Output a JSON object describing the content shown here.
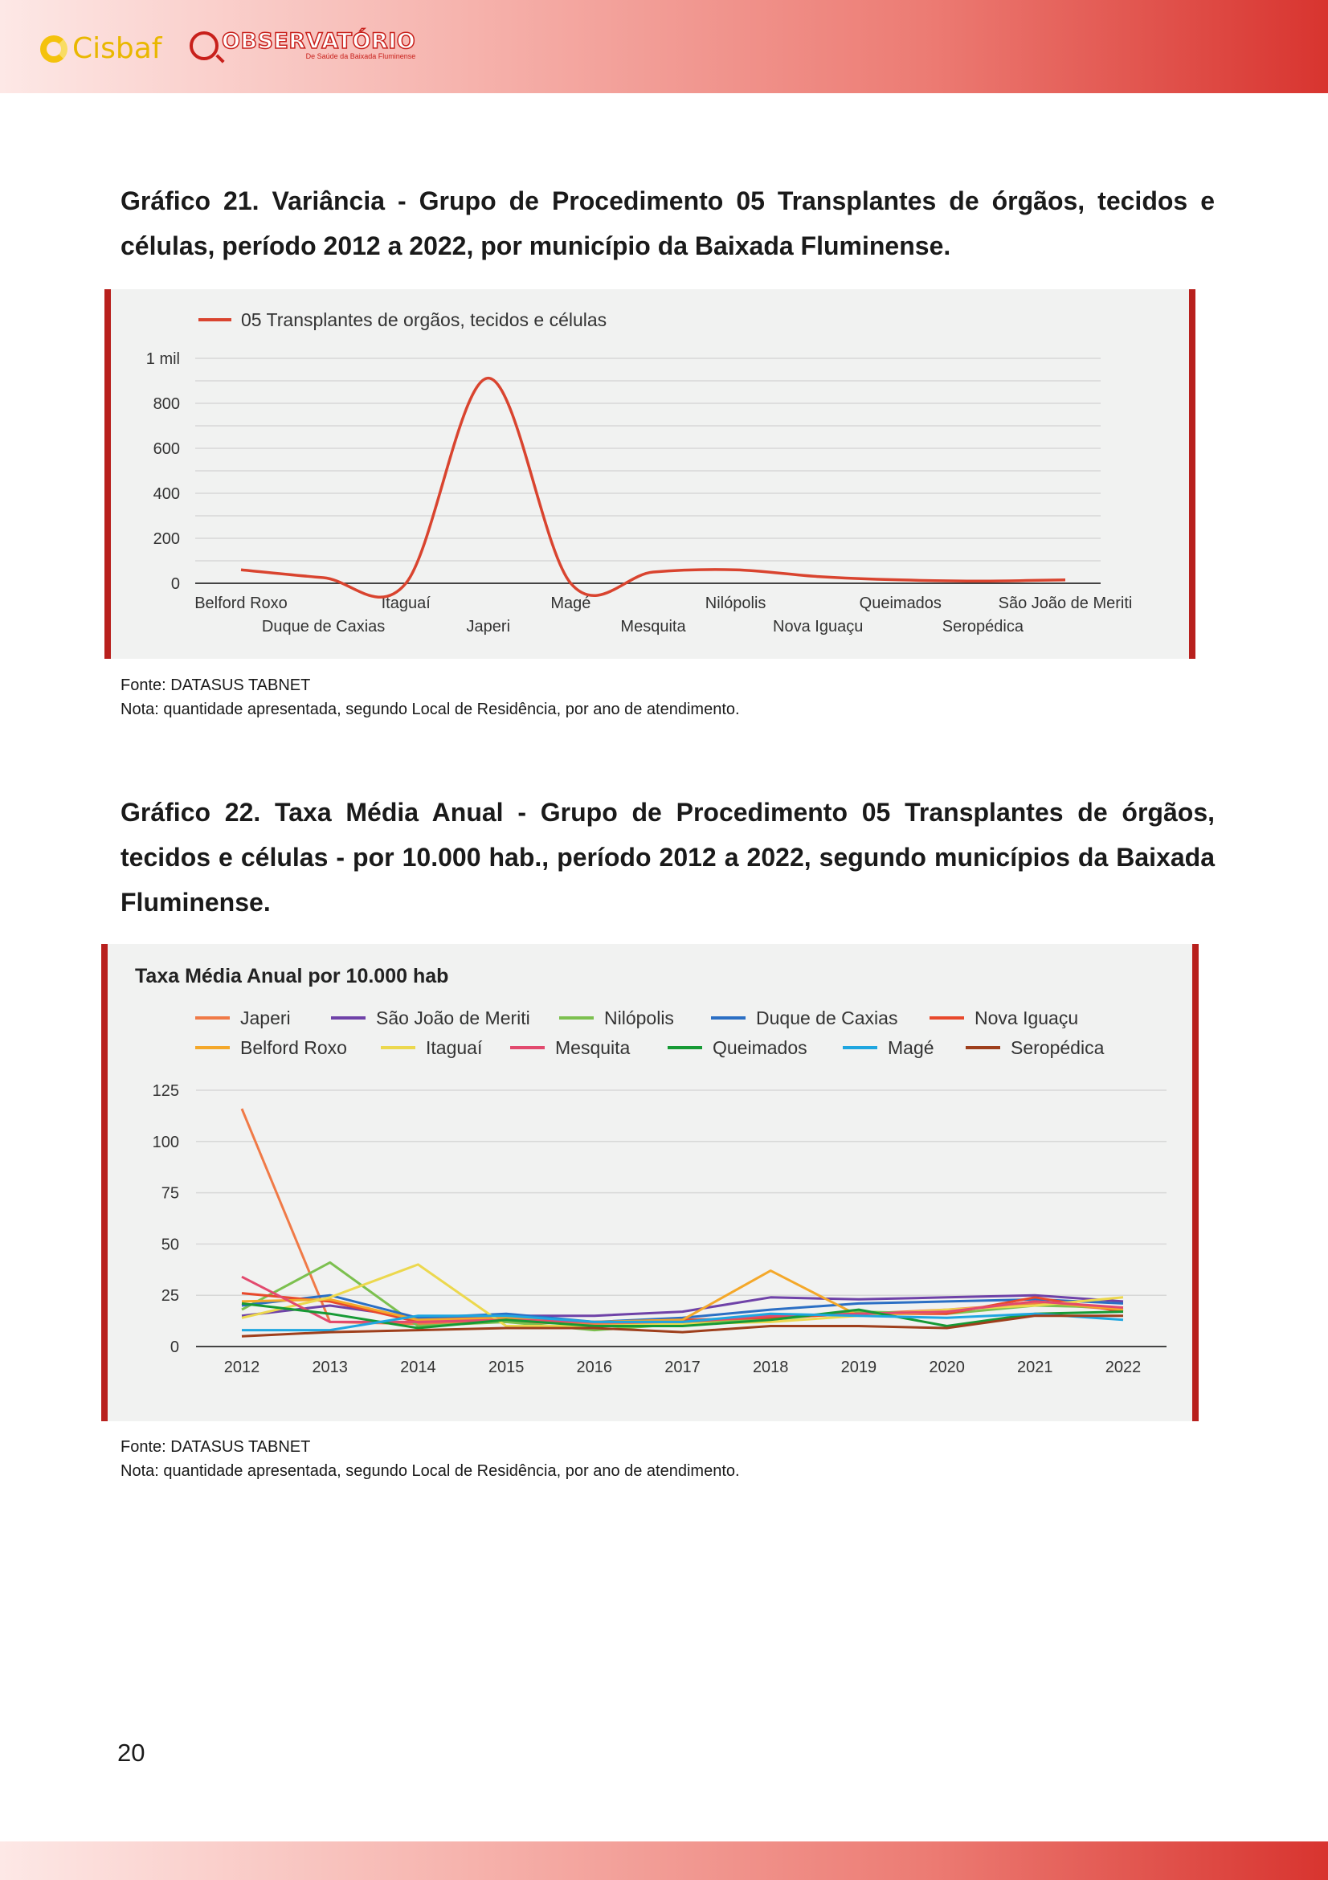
{
  "header": {
    "logo1": "Cisbaf",
    "logo2_name": "OBSERVATÓRIO",
    "logo2_sub": "De Saúde da Baixada Fluminense"
  },
  "chart21": {
    "caption": "Gráfico 21. Variância - Grupo de Procedimento 05 Transplantes de órgãos, tecidos e células, período 2012 a 2022, por município da Baixada Fluminense.",
    "source": "Fonte: DATASUS TABNET",
    "note": "Nota: quantidade apresentada, segundo Local de Residência, por ano de atendimento."
  },
  "chart22": {
    "caption": "Gráfico 22. Taxa Média Anual - Grupo de Procedimento 05 Transplantes de órgãos, tecidos e células - por 10.000 hab., período 2012 a 2022, segundo municípios da Baixada Fluminense.",
    "source": "Fonte: DATASUS TABNET",
    "note": "Nota: quantidade apresentada, segundo Local de Residência, por ano de atendimento."
  },
  "page_number": "20",
  "chart_data": [
    {
      "type": "line",
      "title": "",
      "xlabel": "",
      "ylabel": "",
      "ylim": [
        0,
        1000
      ],
      "yticks": [
        0,
        200,
        400,
        600,
        800,
        1000
      ],
      "ytick_labels": [
        "0",
        "200",
        "400",
        "600",
        "800",
        "1 mil"
      ],
      "categories": [
        "Belford Roxo",
        "Duque de Caxias",
        "Itaguaí",
        "Japeri",
        "Magé",
        "Mesquita",
        "Nilópolis",
        "Nova Iguaçu",
        "Queimados",
        "Seropédica",
        "São João de Meriti"
      ],
      "series": [
        {
          "name": "05 Transplantes de orgãos, tecidos e células",
          "color": "#d9442f",
          "values": [
            60,
            25,
            0,
            912,
            0,
            50,
            60,
            30,
            15,
            10,
            15
          ]
        }
      ],
      "grid": true,
      "legend": "top-left"
    },
    {
      "type": "line",
      "title": "Taxa Média Anual por 10.000 hab",
      "xlabel": "",
      "ylabel": "",
      "ylim": [
        0,
        125
      ],
      "yticks": [
        0,
        25,
        50,
        75,
        100,
        125
      ],
      "categories": [
        "2012",
        "2013",
        "2014",
        "2015",
        "2016",
        "2017",
        "2018",
        "2019",
        "2020",
        "2021",
        "2022"
      ],
      "series": [
        {
          "name": "Japeri",
          "color": "#f07a47",
          "values": [
            116,
            12,
            11,
            12,
            11,
            12,
            14,
            16,
            18,
            21,
            18
          ]
        },
        {
          "name": "São João de Meriti",
          "color": "#6f42a8",
          "values": [
            15,
            20,
            14,
            15,
            15,
            17,
            24,
            23,
            24,
            25,
            22
          ]
        },
        {
          "name": "Nilópolis",
          "color": "#7cc04f",
          "values": [
            18,
            41,
            10,
            12,
            8,
            11,
            13,
            17,
            16,
            20,
            19
          ]
        },
        {
          "name": "Duque de Caxias",
          "color": "#2b6fc4",
          "values": [
            20,
            25,
            14,
            16,
            12,
            14,
            18,
            21,
            22,
            23,
            21
          ]
        },
        {
          "name": "Nova Iguaçu",
          "color": "#e8492c",
          "values": [
            26,
            22,
            12,
            13,
            12,
            13,
            14,
            16,
            16,
            24,
            17
          ]
        },
        {
          "name": "Belford Roxo",
          "color": "#f4a82a",
          "values": [
            22,
            23,
            13,
            14,
            12,
            13,
            37,
            15,
            17,
            22,
            18
          ]
        },
        {
          "name": "Itaguaí",
          "color": "#ecd84e",
          "values": [
            14,
            24,
            40,
            10,
            10,
            11,
            12,
            15,
            18,
            20,
            24
          ]
        },
        {
          "name": "Mesquita",
          "color": "#e24a6e",
          "values": [
            34,
            12,
            12,
            13,
            12,
            12,
            15,
            16,
            17,
            22,
            19
          ]
        },
        {
          "name": "Queimados",
          "color": "#169a35",
          "values": [
            21,
            16,
            9,
            13,
            10,
            10,
            13,
            18,
            10,
            16,
            17
          ]
        },
        {
          "name": "Magé",
          "color": "#1fa6e0",
          "values": [
            8,
            8,
            15,
            15,
            12,
            12,
            16,
            15,
            14,
            16,
            13
          ]
        },
        {
          "name": "Seropédica",
          "color": "#9e3f1c",
          "values": [
            5,
            7,
            8,
            9,
            9,
            7,
            10,
            10,
            9,
            15,
            15
          ]
        }
      ],
      "grid": true,
      "legend": "top"
    }
  ]
}
